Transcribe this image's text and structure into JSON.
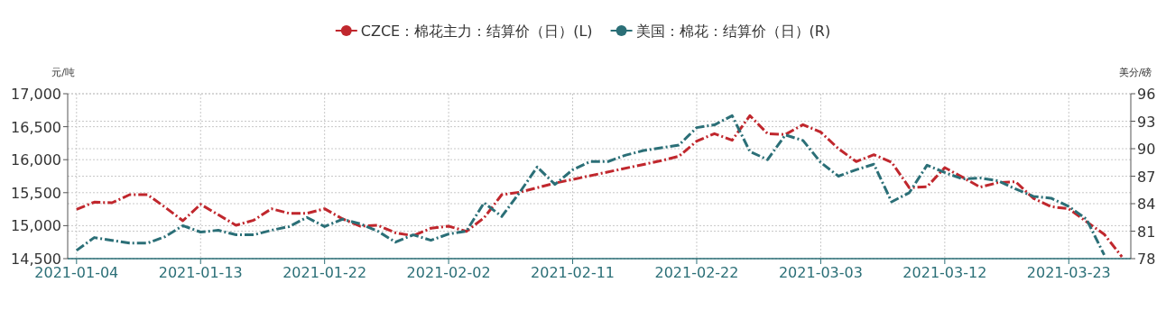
{
  "chart_data": {
    "type": "line",
    "categories": [
      "2021-01-04",
      null,
      null,
      null,
      null,
      null,
      null,
      "2021-01-13",
      null,
      null,
      null,
      null,
      null,
      null,
      "2021-01-22",
      null,
      null,
      null,
      null,
      null,
      null,
      "2021-02-02",
      null,
      null,
      null,
      null,
      null,
      null,
      "2021-02-11",
      null,
      null,
      null,
      null,
      null,
      null,
      "2021-02-22",
      null,
      null,
      null,
      null,
      null,
      null,
      "2021-03-03",
      null,
      null,
      null,
      null,
      null,
      null,
      "2021-03-12",
      null,
      null,
      null,
      null,
      null,
      null,
      "2021-03-23",
      null,
      null,
      null
    ],
    "series": [
      {
        "name": "CZCE：棉花主力：结算价（日）(L)",
        "color": "#c0272d",
        "axis": "y",
        "values": [
          15247,
          15357,
          15347,
          15470,
          15470,
          15279,
          15074,
          15324,
          15165,
          15006,
          15083,
          15256,
          15187,
          15187,
          15256,
          15105,
          14992,
          15006,
          14892,
          14846,
          14961,
          14992,
          14914,
          15119,
          15470,
          15507,
          15575,
          15644,
          null,
          null,
          null,
          null,
          null,
          15985,
          16053,
          16280,
          16395,
          16294,
          16668,
          16395,
          16381,
          16531,
          16417,
          16167,
          15971,
          16075,
          15962,
          15575,
          15589,
          15880,
          15734,
          15584,
          15652,
          15666,
          15415,
          15288,
          15256,
          15060,
          14869,
          14527
        ]
      },
      {
        "name": "美国：棉花：结算价（日）(R)",
        "color": "#2b6f77",
        "axis": "y2",
        "values": [
          78.9,
          80.3,
          80.0,
          79.7,
          79.7,
          80.4,
          81.6,
          80.9,
          81.1,
          80.6,
          80.6,
          81.1,
          81.5,
          82.5,
          81.5,
          82.3,
          81.8,
          81.0,
          79.8,
          80.6,
          80.0,
          80.7,
          81.0,
          84.1,
          82.6,
          85.2,
          88.0,
          86.1,
          87.7,
          88.6,
          88.6,
          89.3,
          89.8,
          90.1,
          90.4,
          92.3,
          92.6,
          93.6,
          89.7,
          88.8,
          91.5,
          90.9,
          88.5,
          87.0,
          87.7,
          88.3,
          84.2,
          85.2,
          88.2,
          87.4,
          86.7,
          86.8,
          86.5,
          85.6,
          84.8,
          84.6,
          83.7,
          82.3,
          78.4,
          null
        ]
      }
    ],
    "ylabel": "元/吨",
    "y2label": "美分/磅",
    "ylim": [
      14500,
      17000
    ],
    "yticks": [
      {
        "value": 14500,
        "label": "14,500"
      },
      {
        "value": 15000,
        "label": "15,000"
      },
      {
        "value": 15500,
        "label": "15,500"
      },
      {
        "value": 16000,
        "label": "16,000"
      },
      {
        "value": 16500,
        "label": "16,500"
      },
      {
        "value": 17000,
        "label": "17,000"
      }
    ],
    "y2lim": [
      78,
      96
    ],
    "y2ticks": [
      78,
      81,
      84,
      87,
      90,
      93,
      96
    ],
    "grid": true,
    "legend": "top",
    "line_style": "dashed"
  }
}
